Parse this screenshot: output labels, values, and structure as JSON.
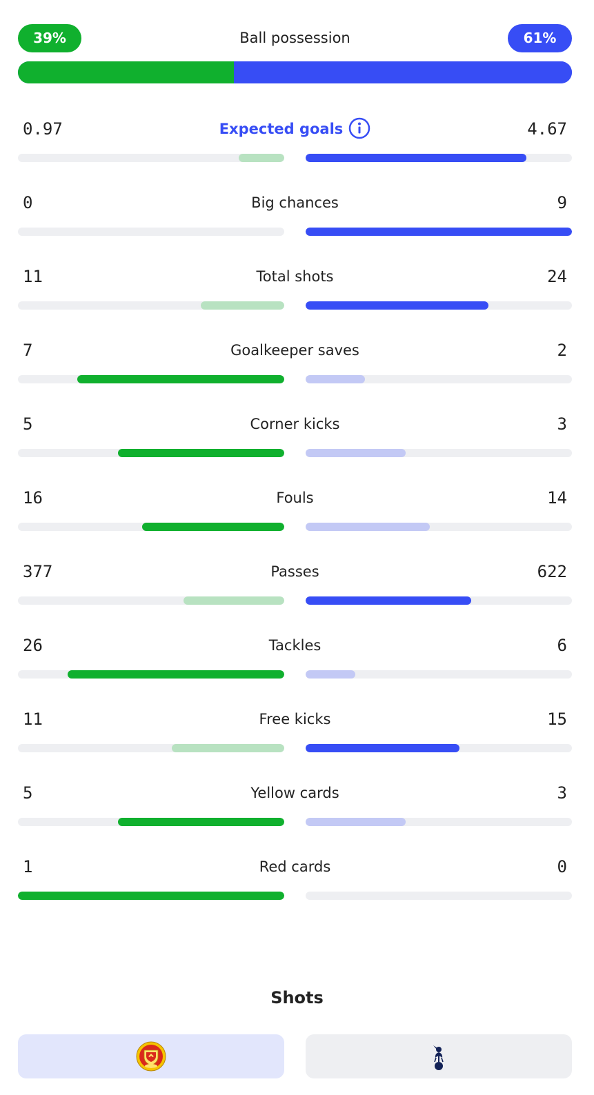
{
  "colors": {
    "home_strong": "#10b02e",
    "home_weak": "#b8e2c1",
    "away_strong": "#374df5",
    "away_weak": "#c3c9f5",
    "track": "#eeeff2"
  },
  "possession": {
    "label": "Ball possession",
    "home": "39%",
    "away": "61%",
    "home_share": 0.39
  },
  "stats": [
    {
      "label": "Expected goals",
      "home": "0.97",
      "away": "4.67",
      "home_value": 0.97,
      "away_value": 4.67,
      "accent": true,
      "icon": "info-icon"
    },
    {
      "label": "Big chances",
      "home": "0",
      "away": "9",
      "home_value": 0,
      "away_value": 9
    },
    {
      "label": "Total shots",
      "home": "11",
      "away": "24",
      "home_value": 11,
      "away_value": 24
    },
    {
      "label": "Goalkeeper saves",
      "home": "7",
      "away": "2",
      "home_value": 7,
      "away_value": 2
    },
    {
      "label": "Corner kicks",
      "home": "5",
      "away": "3",
      "home_value": 5,
      "away_value": 3
    },
    {
      "label": "Fouls",
      "home": "16",
      "away": "14",
      "home_value": 16,
      "away_value": 14
    },
    {
      "label": "Passes",
      "home": "377",
      "away": "622",
      "home_value": 377,
      "away_value": 622
    },
    {
      "label": "Tackles",
      "home": "26",
      "away": "6",
      "home_value": 26,
      "away_value": 6
    },
    {
      "label": "Free kicks",
      "home": "11",
      "away": "15",
      "home_value": 11,
      "away_value": 15
    },
    {
      "label": "Yellow cards",
      "home": "5",
      "away": "3",
      "home_value": 5,
      "away_value": 3
    },
    {
      "label": "Red cards",
      "home": "1",
      "away": "0",
      "home_value": 1,
      "away_value": 0
    }
  ],
  "shots": {
    "title": "Shots",
    "home_tab_icon": "manchester-united-crest",
    "away_tab_icon": "tottenham-crest"
  }
}
